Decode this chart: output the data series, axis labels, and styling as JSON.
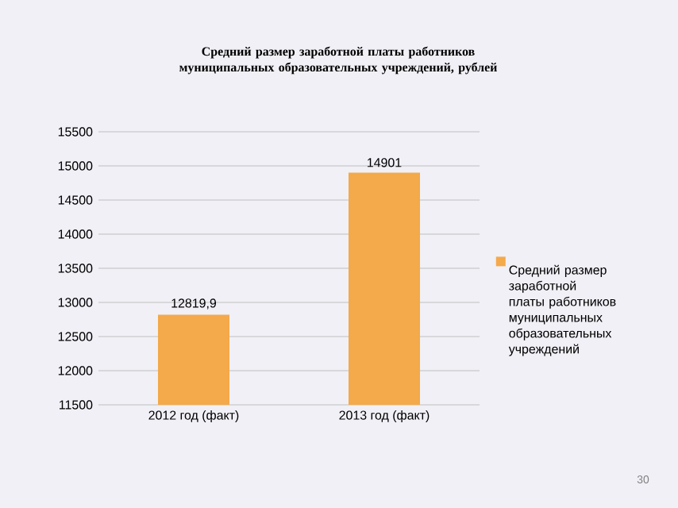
{
  "chart_data": {
    "type": "bar",
    "title": "Средний размер заработной платы работников муниципальных образовательных учреждений, рублей",
    "categories": [
      "2012 год (факт)",
      "2013 год (факт)"
    ],
    "series": [
      {
        "name": "Средний размер заработной платы работников муниципальных образовательных учреждений",
        "color": "#f4a94a",
        "values": [
          12819.9,
          14901
        ],
        "value_labels": [
          "12819,9",
          "14901"
        ]
      }
    ],
    "ylim": [
      11500,
      15500
    ],
    "yticks": [
      11500,
      12000,
      12500,
      13000,
      13500,
      14000,
      14500,
      15000,
      15500
    ],
    "grid": "y",
    "legend": "right",
    "annotations": [
      "30"
    ]
  }
}
